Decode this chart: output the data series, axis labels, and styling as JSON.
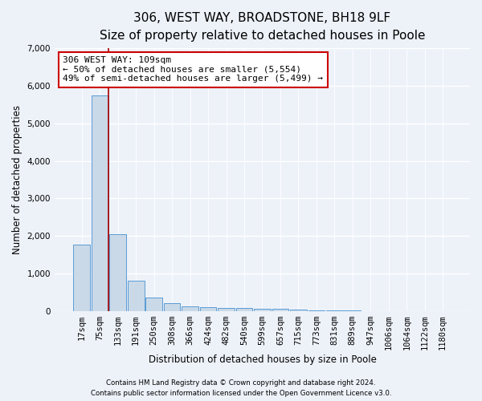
{
  "title_line1": "306, WEST WAY, BROADSTONE, BH18 9LF",
  "title_line2": "Size of property relative to detached houses in Poole",
  "xlabel": "Distribution of detached houses by size in Poole",
  "ylabel": "Number of detached properties",
  "bar_labels": [
    "17sqm",
    "75sqm",
    "133sqm",
    "191sqm",
    "250sqm",
    "308sqm",
    "366sqm",
    "424sqm",
    "482sqm",
    "540sqm",
    "599sqm",
    "657sqm",
    "715sqm",
    "773sqm",
    "831sqm",
    "889sqm",
    "947sqm",
    "1006sqm",
    "1064sqm",
    "1122sqm",
    "1180sqm"
  ],
  "bar_values": [
    1760,
    5750,
    2050,
    800,
    350,
    200,
    120,
    100,
    90,
    90,
    65,
    50,
    30,
    15,
    10,
    8,
    5,
    4,
    3,
    2,
    1
  ],
  "bar_color": "#c9d9e8",
  "bar_edgecolor": "#5b9bd5",
  "background_color": "#edf2f9",
  "plot_background": "#edf2f9",
  "grid_color": "#ffffff",
  "red_line_index": 2,
  "annotation_text": "306 WEST WAY: 109sqm\n← 50% of detached houses are smaller (5,554)\n49% of semi-detached houses are larger (5,499) →",
  "annotation_box_facecolor": "#ffffff",
  "annotation_box_edgecolor": "#cc0000",
  "ylim": [
    0,
    7000
  ],
  "yticks": [
    0,
    1000,
    2000,
    3000,
    4000,
    5000,
    6000,
    7000
  ],
  "footnote1": "Contains HM Land Registry data © Crown copyright and database right 2024.",
  "footnote2": "Contains public sector information licensed under the Open Government Licence v3.0.",
  "title_fontsize": 11,
  "subtitle_fontsize": 9.5,
  "axis_label_fontsize": 8.5,
  "tick_fontsize": 7.5,
  "annotation_fontsize": 8
}
